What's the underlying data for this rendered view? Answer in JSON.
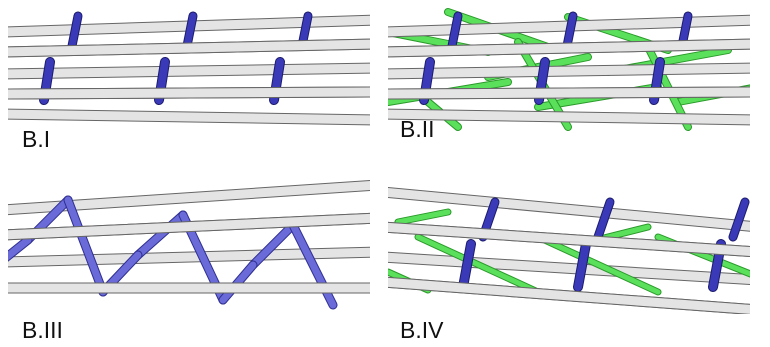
{
  "panels": [
    {
      "label": "B.I"
    },
    {
      "label": "B.II"
    },
    {
      "label": "B.III"
    },
    {
      "label": "B.IV"
    }
  ]
}
